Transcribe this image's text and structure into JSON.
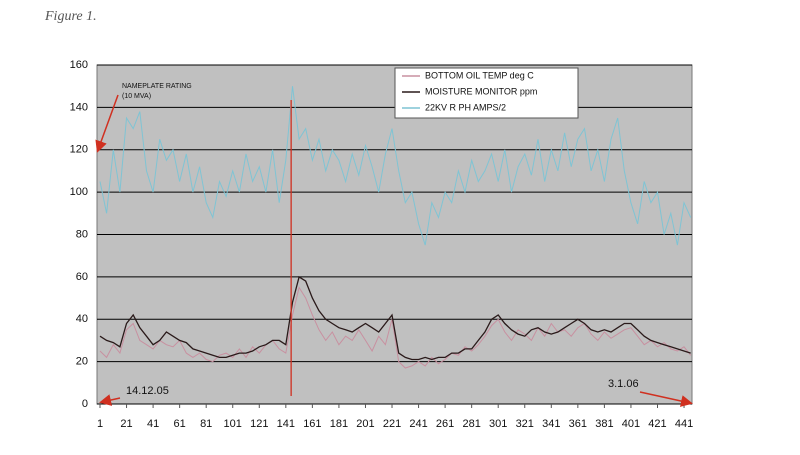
{
  "figure_label": "Figure 1.",
  "chart_data": {
    "type": "line",
    "annotations": [
      "NAMEPLATE RATING",
      "(10 MVA)",
      "14.12.05",
      "3.1.06"
    ],
    "vline_x": 145,
    "x": [
      1,
      6,
      11,
      16,
      21,
      26,
      31,
      36,
      41,
      46,
      51,
      56,
      61,
      66,
      71,
      76,
      81,
      86,
      91,
      96,
      101,
      106,
      111,
      116,
      121,
      126,
      131,
      136,
      141,
      146,
      151,
      156,
      161,
      166,
      171,
      176,
      181,
      186,
      191,
      196,
      201,
      206,
      211,
      216,
      221,
      226,
      231,
      236,
      241,
      246,
      251,
      256,
      261,
      266,
      271,
      276,
      281,
      286,
      291,
      296,
      301,
      306,
      311,
      316,
      321,
      326,
      331,
      336,
      341,
      346,
      351,
      356,
      361,
      366,
      371,
      376,
      381,
      386,
      391,
      396,
      401,
      406,
      411,
      416,
      421,
      426,
      431,
      436,
      441,
      446
    ],
    "series": [
      {
        "name": "BOTTOM OIL TEMP deg C",
        "color": "#c890a0",
        "values": [
          25,
          22,
          28,
          24,
          35,
          38,
          30,
          28,
          26,
          30,
          28,
          27,
          30,
          24,
          22,
          24,
          21,
          20,
          23,
          24,
          22,
          26,
          22,
          27,
          24,
          28,
          30,
          26,
          24,
          42,
          55,
          50,
          42,
          35,
          30,
          34,
          28,
          32,
          30,
          35,
          30,
          25,
          32,
          28,
          40,
          20,
          17,
          18,
          20,
          18,
          22,
          19,
          21,
          24,
          23,
          27,
          25,
          28,
          32,
          37,
          40,
          34,
          30,
          35,
          33,
          30,
          36,
          32,
          38,
          34,
          35,
          32,
          36,
          38,
          33,
          30,
          34,
          31,
          33,
          35,
          36,
          32,
          28,
          30,
          27,
          29,
          26,
          25,
          27,
          23
        ]
      },
      {
        "name": "MOISTURE MONITOR ppm",
        "color": "#2a1a1a",
        "values": [
          32,
          30,
          29,
          27,
          38,
          42,
          36,
          32,
          28,
          30,
          34,
          32,
          30,
          29,
          26,
          25,
          24,
          23,
          22,
          22,
          23,
          24,
          24,
          25,
          27,
          28,
          30,
          30,
          28,
          48,
          60,
          58,
          50,
          44,
          40,
          38,
          36,
          35,
          34,
          36,
          38,
          36,
          34,
          38,
          42,
          24,
          22,
          21,
          21,
          22,
          21,
          22,
          22,
          24,
          24,
          26,
          26,
          30,
          34,
          40,
          42,
          38,
          35,
          33,
          32,
          35,
          36,
          34,
          33,
          34,
          36,
          38,
          40,
          38,
          35,
          34,
          35,
          34,
          36,
          38,
          38,
          35,
          32,
          30,
          29,
          28,
          27,
          26,
          25,
          24
        ]
      },
      {
        "name": "22KV R PH AMPS/2",
        "color": "#7fc4d4",
        "values": [
          105,
          90,
          120,
          100,
          135,
          130,
          138,
          110,
          100,
          125,
          115,
          120,
          105,
          118,
          100,
          112,
          95,
          88,
          105,
          98,
          110,
          100,
          118,
          105,
          112,
          100,
          120,
          95,
          115,
          150,
          125,
          130,
          115,
          125,
          110,
          120,
          115,
          105,
          118,
          108,
          122,
          112,
          100,
          118,
          130,
          110,
          95,
          100,
          85,
          75,
          95,
          88,
          100,
          95,
          110,
          100,
          115,
          105,
          110,
          118,
          105,
          120,
          100,
          112,
          118,
          108,
          125,
          105,
          120,
          110,
          128,
          112,
          125,
          130,
          110,
          120,
          105,
          125,
          135,
          110,
          95,
          85,
          105,
          95,
          100,
          80,
          90,
          75,
          95,
          88
        ]
      }
    ],
    "xlim": [
      1,
      447
    ],
    "ylim": [
      0,
      160
    ],
    "xticks": [
      1,
      21,
      41,
      61,
      81,
      101,
      121,
      141,
      161,
      181,
      201,
      221,
      241,
      261,
      281,
      301,
      321,
      341,
      361,
      381,
      401,
      421,
      441
    ],
    "yticks": [
      0,
      20,
      40,
      60,
      80,
      100,
      120,
      140,
      160
    ],
    "grid": true,
    "plot_background": "#c0c0c0"
  }
}
